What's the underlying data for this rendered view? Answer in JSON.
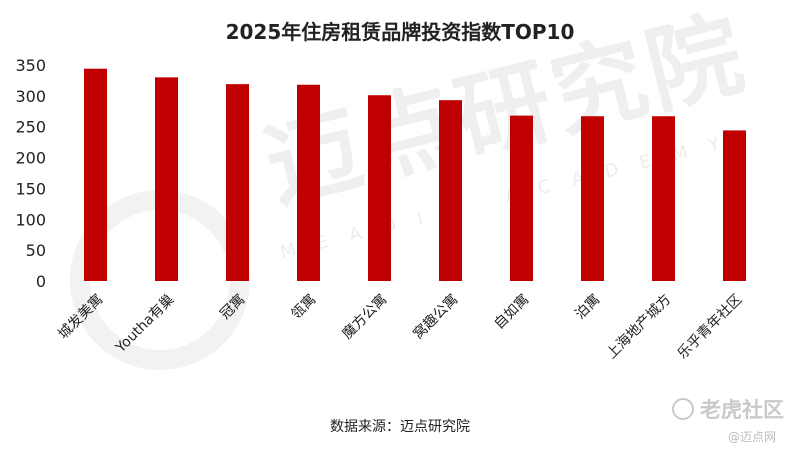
{
  "chart_data": {
    "type": "bar",
    "title": "2025年住房租赁品牌投资指数TOP10",
    "categories": [
      "城发美寓",
      "Youtha有巢",
      "冠寓",
      "瓴寓",
      "魔方公寓",
      "窝趣公寓",
      "自如寓",
      "泊寓",
      "上海地产城方",
      "乐乎青年社区"
    ],
    "values": [
      344,
      330,
      319,
      318,
      301,
      293,
      268,
      267,
      267,
      244
    ],
    "ylim": [
      0,
      350
    ],
    "yticks": [
      0,
      50,
      100,
      150,
      200,
      250,
      300,
      350
    ],
    "bar_color": "#c00000",
    "grid": false,
    "legend": "none",
    "xlabel": "",
    "ylabel": ""
  },
  "source": "数据来源：迈点研究院",
  "watermark": {
    "main": "迈点研究院",
    "sub": "MEADIN ACADEMY",
    "corner_main": "老虎社区",
    "corner_sub": "@迈点网"
  }
}
